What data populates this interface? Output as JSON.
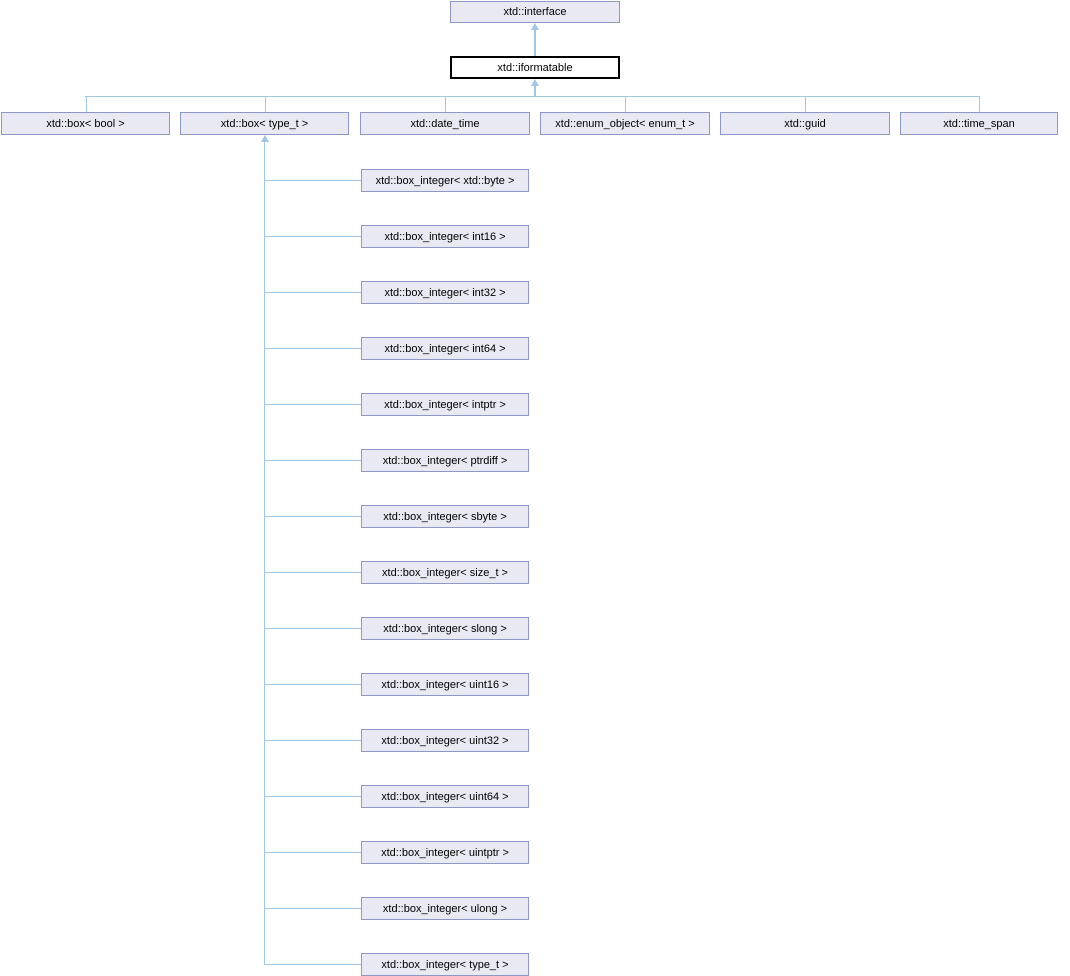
{
  "diagram": {
    "title": "inheritance-graph",
    "root": {
      "label": "xtd::interface"
    },
    "current": {
      "label": "xtd::iformatable"
    },
    "children": [
      {
        "label": "xtd::box< bool >"
      },
      {
        "label": "xtd::box< type_t >"
      },
      {
        "label": "xtd::date_time"
      },
      {
        "label": "xtd::enum_object< enum_t >"
      },
      {
        "label": "xtd::guid"
      },
      {
        "label": "xtd::time_span"
      }
    ],
    "box_type_t_children": [
      {
        "label": "xtd::box_integer< xtd::byte >"
      },
      {
        "label": "xtd::box_integer< int16 >"
      },
      {
        "label": "xtd::box_integer< int32 >"
      },
      {
        "label": "xtd::box_integer< int64 >"
      },
      {
        "label": "xtd::box_integer< intptr >"
      },
      {
        "label": "xtd::box_integer< ptrdiff >"
      },
      {
        "label": "xtd::box_integer< sbyte >"
      },
      {
        "label": "xtd::box_integer< size_t >"
      },
      {
        "label": "xtd::box_integer< slong >"
      },
      {
        "label": "xtd::box_integer< uint16 >"
      },
      {
        "label": "xtd::box_integer< uint32 >"
      },
      {
        "label": "xtd::box_integer< uint64 >"
      },
      {
        "label": "xtd::box_integer< uintptr >"
      },
      {
        "label": "xtd::box_integer< ulong >"
      },
      {
        "label": "xtd::box_integer< type_t >"
      }
    ],
    "truncated_node_index": 14
  },
  "colors": {
    "background": "#FFFFFF",
    "node_fill": "#E8E9F3",
    "node_border": "#8E98C6",
    "current_fill": "#FFFFFF",
    "current_border": "#000000",
    "edge": "#A2C6E6",
    "text": "#000000"
  }
}
